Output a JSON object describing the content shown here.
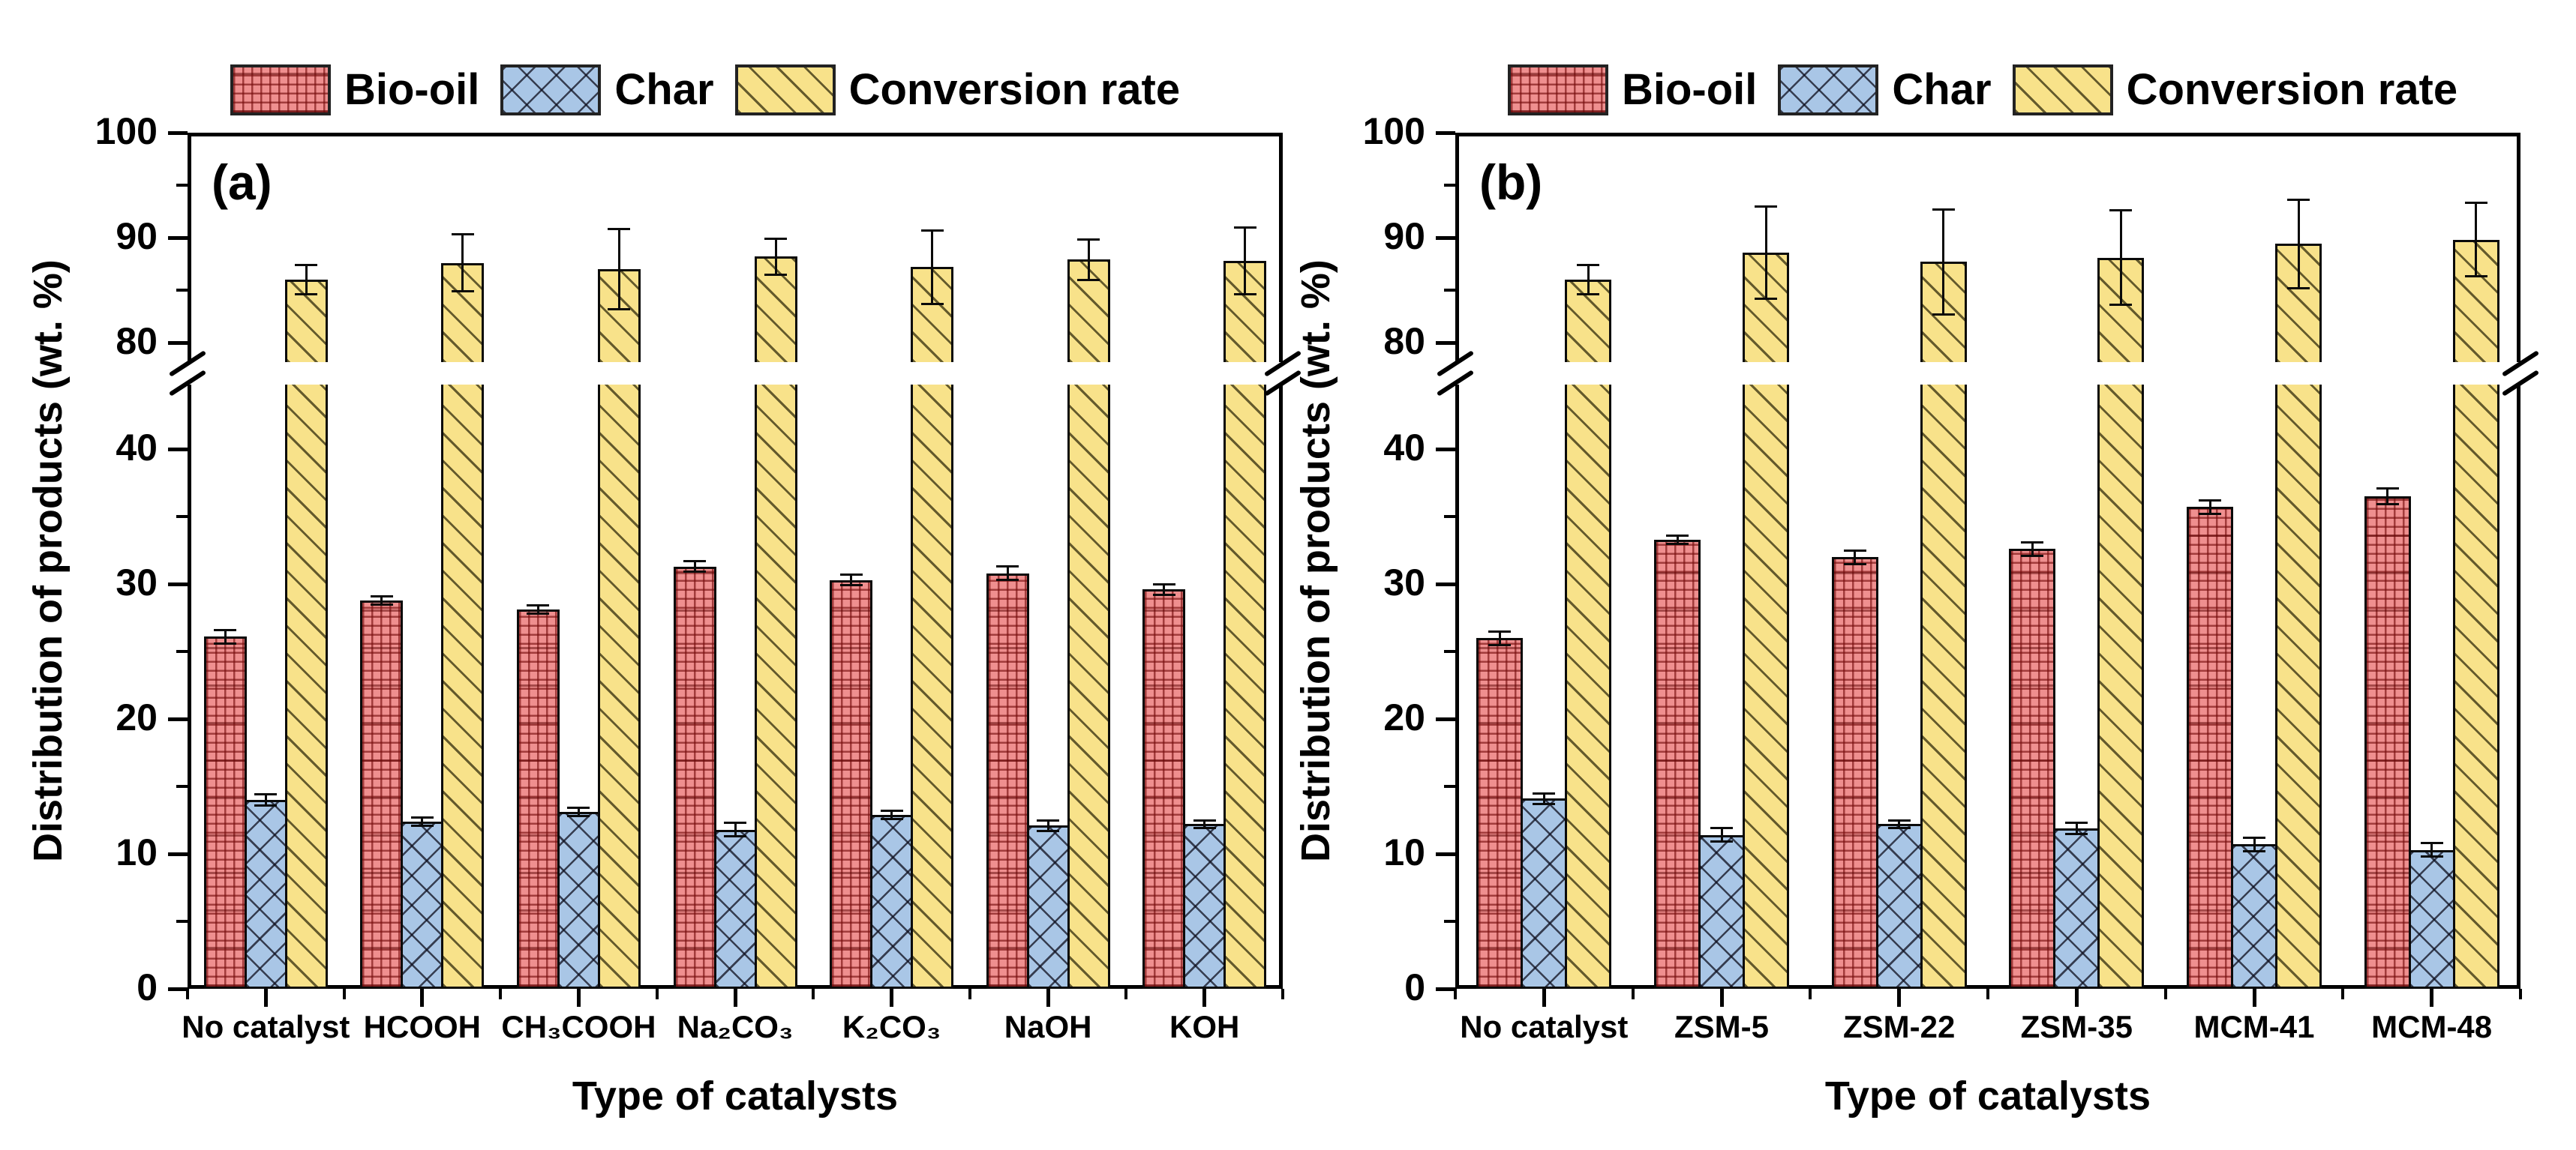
{
  "figure_title": "",
  "colors": {
    "bio_oil_fill": "#ef8f8f",
    "char_fill": "#a9c6e6",
    "conversion_fill": "#f8e28a",
    "axis": "#000000",
    "background": "#ffffff"
  },
  "legend": [
    {
      "label": "Bio-oil",
      "pattern": "grid"
    },
    {
      "label": "Char",
      "pattern": "crosshatch"
    },
    {
      "label": "Conversion rate",
      "pattern": "diagonal"
    }
  ],
  "chart_data": [
    {
      "type": "bar",
      "panel_label": "(a)",
      "title": "",
      "xlabel": "Type of catalysts",
      "ylabel": "Distribution of products (wt. %)",
      "ylim": [
        0,
        100
      ],
      "axis_break": {
        "lower_max": 44.8,
        "upper_min": 78.1
      },
      "grid": false,
      "legend_position": "top",
      "y_ticks_lower": [
        0,
        10,
        20,
        30,
        40
      ],
      "y_ticks_upper": [
        80,
        90,
        100
      ],
      "y_minor_lower": [
        5,
        15,
        25,
        35
      ],
      "y_minor_upper": [
        85,
        95
      ],
      "categories": [
        "No catalyst",
        "HCOOH",
        "CH₃COOH",
        "Na₂CO₃",
        "K₂CO₃",
        "NaOH",
        "KOH"
      ],
      "series": [
        {
          "name": "Bio-oil",
          "pattern": "grid",
          "values": [
            26.1,
            28.8,
            28.1,
            31.3,
            30.3,
            30.8,
            29.6
          ],
          "errors": [
            0.5,
            0.3,
            0.3,
            0.4,
            0.4,
            0.5,
            0.4
          ]
        },
        {
          "name": "Char",
          "pattern": "crosshatch",
          "values": [
            14.0,
            12.4,
            13.1,
            11.8,
            12.9,
            12.1,
            12.2
          ],
          "errors": [
            0.4,
            0.3,
            0.3,
            0.5,
            0.3,
            0.4,
            0.3
          ]
        },
        {
          "name": "Conversion rate",
          "pattern": "diagonal",
          "values": [
            86.0,
            87.6,
            87.0,
            88.2,
            87.2,
            87.9,
            87.8
          ],
          "errors": [
            1.4,
            2.7,
            3.8,
            1.7,
            3.5,
            1.9,
            3.2
          ]
        }
      ]
    },
    {
      "type": "bar",
      "panel_label": "(b)",
      "title": "",
      "xlabel": "Type of catalysts",
      "ylabel": "Distribution of products (wt. %)",
      "ylim": [
        0,
        100
      ],
      "axis_break": {
        "lower_max": 44.8,
        "upper_min": 78.1
      },
      "grid": false,
      "legend_position": "top",
      "y_ticks_lower": [
        0,
        10,
        20,
        30,
        40
      ],
      "y_ticks_upper": [
        80,
        90,
        100
      ],
      "y_minor_lower": [
        5,
        15,
        25,
        35
      ],
      "y_minor_upper": [
        85,
        95
      ],
      "categories": [
        "No catalyst",
        "ZSM-5",
        "ZSM-22",
        "ZSM-35",
        "MCM-41",
        "MCM-48"
      ],
      "series": [
        {
          "name": "Bio-oil",
          "pattern": "grid",
          "values": [
            26.0,
            33.3,
            32.0,
            32.6,
            35.7,
            36.5
          ],
          "errors": [
            0.5,
            0.3,
            0.5,
            0.5,
            0.5,
            0.6
          ]
        },
        {
          "name": "Char",
          "pattern": "crosshatch",
          "values": [
            14.1,
            11.4,
            12.2,
            11.9,
            10.7,
            10.3
          ],
          "errors": [
            0.4,
            0.5,
            0.3,
            0.4,
            0.5,
            0.5
          ]
        },
        {
          "name": "Conversion rate",
          "pattern": "diagonal",
          "values": [
            86.0,
            88.6,
            87.7,
            88.1,
            89.4,
            89.8
          ],
          "errors": [
            1.4,
            4.4,
            5.0,
            4.5,
            4.2,
            3.5
          ]
        }
      ]
    }
  ]
}
